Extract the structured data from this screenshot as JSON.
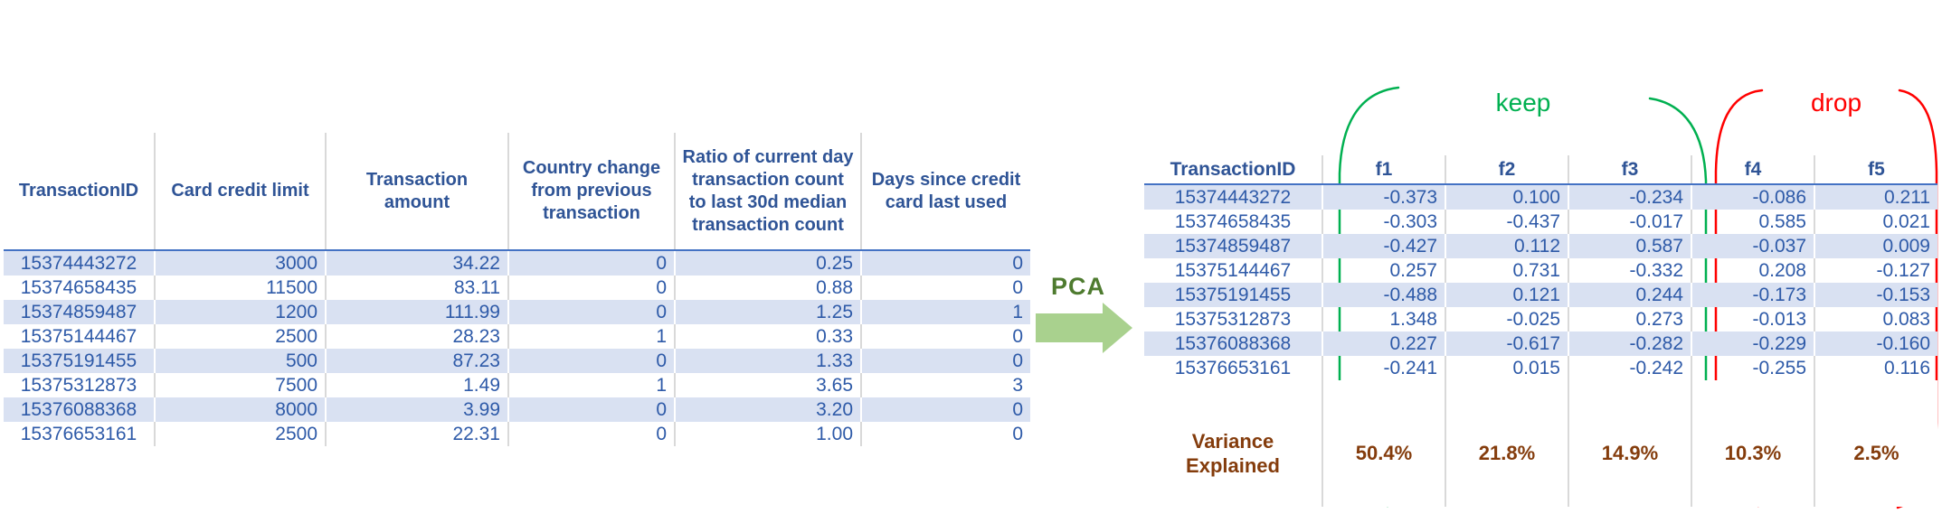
{
  "diagram_title": "PCA dimensionality reduction of credit-card transaction features",
  "left_table": {
    "headers": [
      "TransactionID",
      "Card credit limit",
      "Transaction amount",
      "Country change from previous transaction",
      "Ratio of current day transaction count to last 30d median transaction count",
      "Days since credit card last used"
    ],
    "rows": [
      [
        "15374443272",
        "3000",
        "34.22",
        "0",
        "0.25",
        "0"
      ],
      [
        "15374658435",
        "11500",
        "83.11",
        "0",
        "0.88",
        "0"
      ],
      [
        "15374859487",
        "1200",
        "111.99",
        "0",
        "1.25",
        "1"
      ],
      [
        "15375144467",
        "2500",
        "28.23",
        "1",
        "0.33",
        "0"
      ],
      [
        "15375191455",
        "500",
        "87.23",
        "0",
        "1.33",
        "0"
      ],
      [
        "15375312873",
        "7500",
        "1.49",
        "1",
        "3.65",
        "3"
      ],
      [
        "15376088368",
        "8000",
        "3.99",
        "0",
        "3.20",
        "0"
      ],
      [
        "15376653161",
        "2500",
        "22.31",
        "0",
        "1.00",
        "0"
      ]
    ]
  },
  "pca": {
    "label": "PCA"
  },
  "annotations": {
    "keep": "keep",
    "drop": "drop"
  },
  "right_table": {
    "headers": [
      "TransactionID",
      "f1",
      "f2",
      "f3",
      "f4",
      "f5"
    ],
    "rows": [
      [
        "15374443272",
        "-0.373",
        "0.100",
        "-0.234",
        "-0.086",
        "0.211"
      ],
      [
        "15374658435",
        "-0.303",
        "-0.437",
        "-0.017",
        "0.585",
        "0.021"
      ],
      [
        "15374859487",
        "-0.427",
        "0.112",
        "0.587",
        "-0.037",
        "0.009"
      ],
      [
        "15375144467",
        "0.257",
        "0.731",
        "-0.332",
        "0.208",
        "-0.127"
      ],
      [
        "15375191455",
        "-0.488",
        "0.121",
        "0.244",
        "-0.173",
        "-0.153"
      ],
      [
        "15375312873",
        "1.348",
        "-0.025",
        "0.273",
        "-0.013",
        "0.083"
      ],
      [
        "15376088368",
        "0.227",
        "-0.617",
        "-0.282",
        "-0.229",
        "-0.160"
      ],
      [
        "15376653161",
        "-0.241",
        "0.015",
        "-0.242",
        "-0.255",
        "0.116"
      ]
    ],
    "variance_label": "Variance Explained",
    "variance": [
      "50.4%",
      "21.8%",
      "14.9%",
      "10.3%",
      "2.5%"
    ],
    "kept_components": [
      "f1",
      "f2",
      "f3"
    ],
    "dropped_components": [
      "f4",
      "f5"
    ]
  },
  "colors": {
    "header_blue": "#2F5496",
    "data_blue": "#2E5AA8",
    "row_band": "#D9E1F2",
    "rule_blue": "#4472C4",
    "divider_gray": "#D9D9D9",
    "keep_green": "#00B050",
    "drop_red": "#FF0000",
    "pca_text_green": "#4E7B2F",
    "arrow_green": "#A9D18E",
    "variance_brown": "#843C0C"
  }
}
